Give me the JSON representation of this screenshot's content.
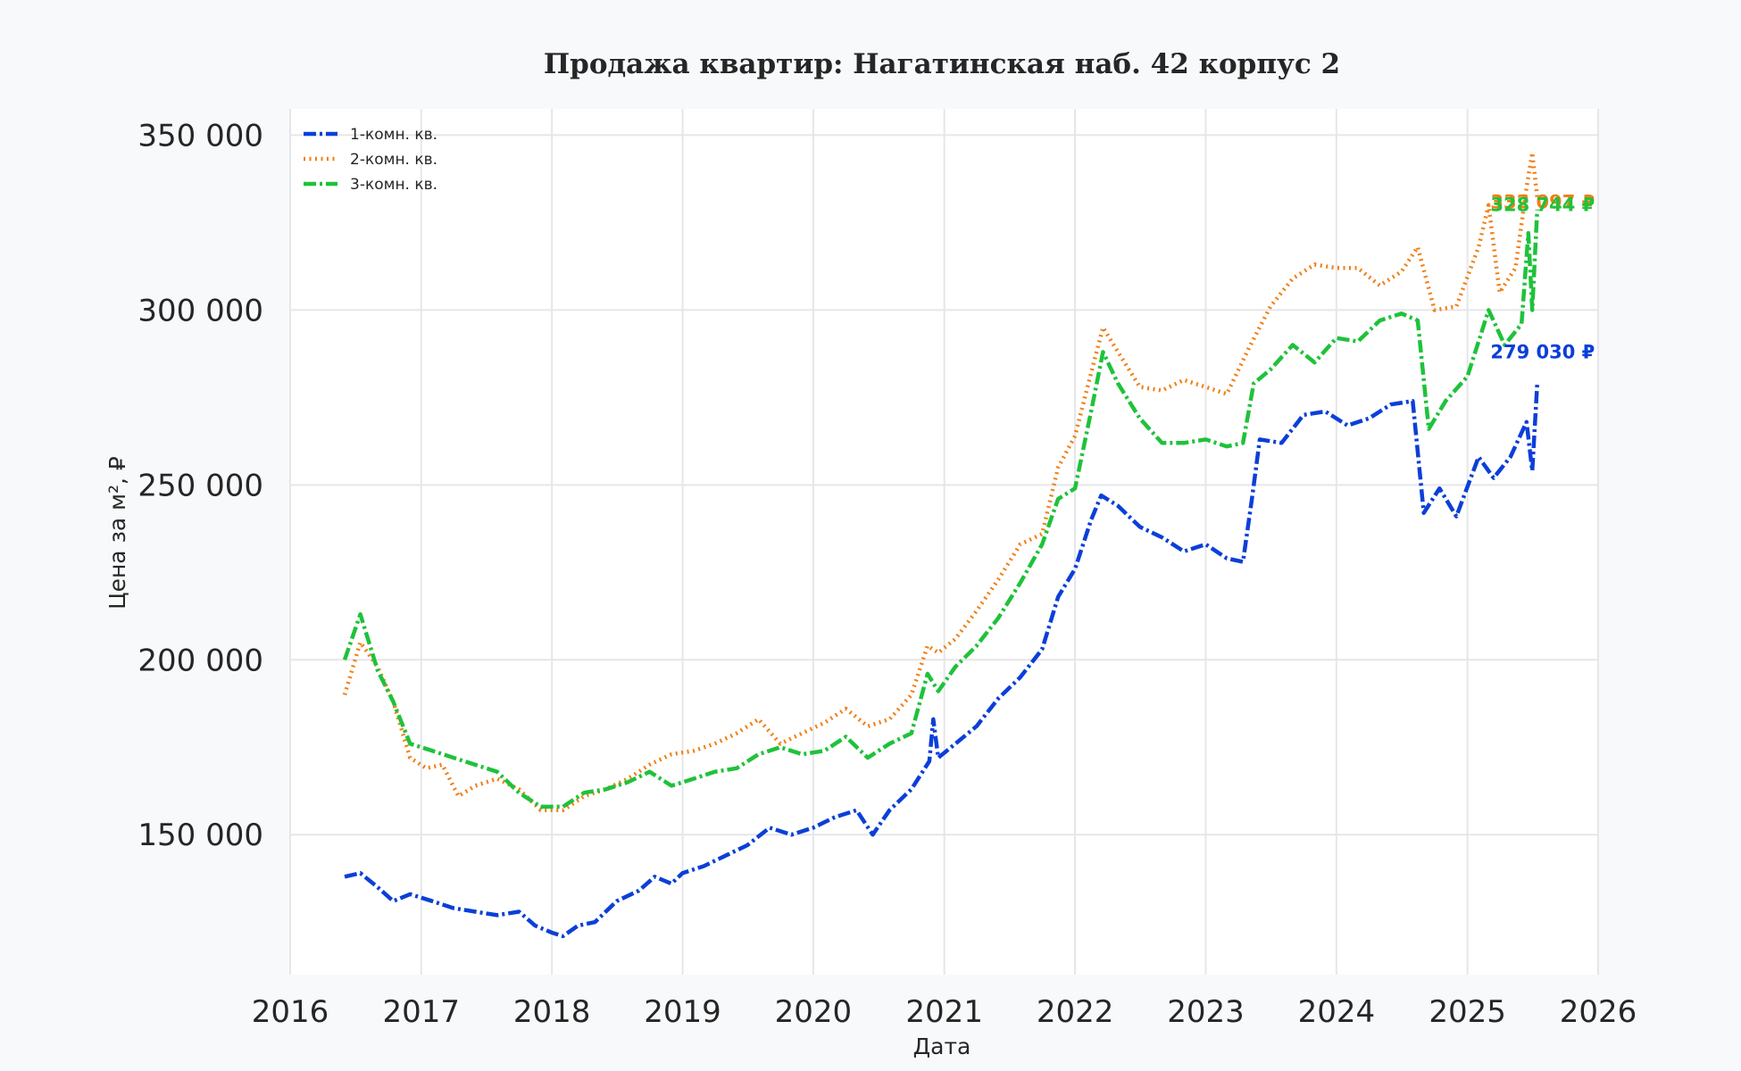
{
  "chart_data": {
    "type": "line",
    "title": "Продажа квартир: Нагатинская наб. 42 корпус 2",
    "xlabel": "Дата",
    "ylabel": "Цена за м², ₽",
    "x_ticks": [
      "2016",
      "2017",
      "2018",
      "2019",
      "2020",
      "2021",
      "2022",
      "2023",
      "2024",
      "2025",
      "2026"
    ],
    "y_ticks": [
      {
        "value": 150000,
        "label": "150 000"
      },
      {
        "value": 200000,
        "label": "200 000"
      },
      {
        "value": 250000,
        "label": "250 000"
      },
      {
        "value": 300000,
        "label": "300 000"
      },
      {
        "value": 350000,
        "label": "350 000"
      }
    ],
    "xlim": [
      "2016-01-01",
      "2026-01-01"
    ],
    "ylim": [
      110000,
      357500
    ],
    "grid": true,
    "legend_position": "top-left",
    "series": [
      {
        "name": "1-комн. кв.",
        "color": "#0b3fd8",
        "style": "dashdot",
        "end_label": "279 030 ₽",
        "points": [
          [
            "2016-06-01",
            138000
          ],
          [
            "2016-07-15",
            139000
          ],
          [
            "2016-09-01",
            135000
          ],
          [
            "2016-10-15",
            131000
          ],
          [
            "2016-12-01",
            133000
          ],
          [
            "2017-02-01",
            131000
          ],
          [
            "2017-04-01",
            129000
          ],
          [
            "2017-06-01",
            128000
          ],
          [
            "2017-08-01",
            127000
          ],
          [
            "2017-10-01",
            128000
          ],
          [
            "2017-11-15",
            124000
          ],
          [
            "2018-01-01",
            122000
          ],
          [
            "2018-02-01",
            121000
          ],
          [
            "2018-03-15",
            124000
          ],
          [
            "2018-05-01",
            125000
          ],
          [
            "2018-07-01",
            131000
          ],
          [
            "2018-09-01",
            134000
          ],
          [
            "2018-10-15",
            138000
          ],
          [
            "2018-12-01",
            136000
          ],
          [
            "2019-01-01",
            139000
          ],
          [
            "2019-03-01",
            141000
          ],
          [
            "2019-05-01",
            144000
          ],
          [
            "2019-07-01",
            147000
          ],
          [
            "2019-09-01",
            152000
          ],
          [
            "2019-11-01",
            150000
          ],
          [
            "2020-01-01",
            152000
          ],
          [
            "2020-03-01",
            155000
          ],
          [
            "2020-05-01",
            157000
          ],
          [
            "2020-06-15",
            150000
          ],
          [
            "2020-08-01",
            157000
          ],
          [
            "2020-10-01",
            163000
          ],
          [
            "2020-11-20",
            171000
          ],
          [
            "2020-12-01",
            183000
          ],
          [
            "2020-12-15",
            172000
          ],
          [
            "2021-02-01",
            176000
          ],
          [
            "2021-04-01",
            181000
          ],
          [
            "2021-06-01",
            189000
          ],
          [
            "2021-08-01",
            195000
          ],
          [
            "2021-10-01",
            203000
          ],
          [
            "2021-11-15",
            218000
          ],
          [
            "2022-01-01",
            226000
          ],
          [
            "2022-02-15",
            240000
          ],
          [
            "2022-03-15",
            247000
          ],
          [
            "2022-05-01",
            244000
          ],
          [
            "2022-07-01",
            238000
          ],
          [
            "2022-09-01",
            235000
          ],
          [
            "2022-11-01",
            231000
          ],
          [
            "2023-01-01",
            233000
          ],
          [
            "2023-03-01",
            229000
          ],
          [
            "2023-04-15",
            228000
          ],
          [
            "2023-05-10",
            246000
          ],
          [
            "2023-06-01",
            263000
          ],
          [
            "2023-08-01",
            262000
          ],
          [
            "2023-10-01",
            270000
          ],
          [
            "2023-12-01",
            271000
          ],
          [
            "2024-02-01",
            267000
          ],
          [
            "2024-04-01",
            269000
          ],
          [
            "2024-06-01",
            273000
          ],
          [
            "2024-08-01",
            274000
          ],
          [
            "2024-09-01",
            242000
          ],
          [
            "2024-10-15",
            249000
          ],
          [
            "2024-12-01",
            241000
          ],
          [
            "2025-02-01",
            258000
          ],
          [
            "2025-03-15",
            252000
          ],
          [
            "2025-05-01",
            258000
          ],
          [
            "2025-06-15",
            268000
          ],
          [
            "2025-07-01",
            254000
          ],
          [
            "2025-07-15",
            279030
          ]
        ]
      },
      {
        "name": "2-комн. кв.",
        "color": "#f07f14",
        "style": "dotted",
        "end_label": "332 097 ₽",
        "points": [
          [
            "2016-06-01",
            190000
          ],
          [
            "2016-07-15",
            205000
          ],
          [
            "2016-09-01",
            198000
          ],
          [
            "2016-10-15",
            188000
          ],
          [
            "2016-12-01",
            172000
          ],
          [
            "2017-01-15",
            169000
          ],
          [
            "2017-03-01",
            170000
          ],
          [
            "2017-04-15",
            161000
          ],
          [
            "2017-06-01",
            164000
          ],
          [
            "2017-08-01",
            166000
          ],
          [
            "2017-10-01",
            163000
          ],
          [
            "2017-12-01",
            157000
          ],
          [
            "2018-02-01",
            157000
          ],
          [
            "2018-04-01",
            161000
          ],
          [
            "2018-06-01",
            163000
          ],
          [
            "2018-08-01",
            166000
          ],
          [
            "2018-10-01",
            170000
          ],
          [
            "2018-12-01",
            173000
          ],
          [
            "2019-02-01",
            174000
          ],
          [
            "2019-04-01",
            176000
          ],
          [
            "2019-06-01",
            179000
          ],
          [
            "2019-08-01",
            183000
          ],
          [
            "2019-10-01",
            176000
          ],
          [
            "2019-12-01",
            179000
          ],
          [
            "2020-02-01",
            182000
          ],
          [
            "2020-04-01",
            186000
          ],
          [
            "2020-06-01",
            181000
          ],
          [
            "2020-08-01",
            183000
          ],
          [
            "2020-10-01",
            190000
          ],
          [
            "2020-11-15",
            204000
          ],
          [
            "2020-12-15",
            202000
          ],
          [
            "2021-02-01",
            206000
          ],
          [
            "2021-04-01",
            214000
          ],
          [
            "2021-06-01",
            223000
          ],
          [
            "2021-08-01",
            233000
          ],
          [
            "2021-10-01",
            236000
          ],
          [
            "2021-11-15",
            255000
          ],
          [
            "2022-01-01",
            264000
          ],
          [
            "2022-02-15",
            282000
          ],
          [
            "2022-03-20",
            295000
          ],
          [
            "2022-05-01",
            288000
          ],
          [
            "2022-07-01",
            278000
          ],
          [
            "2022-09-01",
            277000
          ],
          [
            "2022-11-01",
            280000
          ],
          [
            "2023-01-01",
            278000
          ],
          [
            "2023-03-01",
            276000
          ],
          [
            "2023-05-01",
            289000
          ],
          [
            "2023-07-01",
            301000
          ],
          [
            "2023-09-01",
            309000
          ],
          [
            "2023-11-01",
            313000
          ],
          [
            "2024-01-01",
            312000
          ],
          [
            "2024-03-01",
            312000
          ],
          [
            "2024-05-01",
            307000
          ],
          [
            "2024-07-01",
            311000
          ],
          [
            "2024-08-15",
            318000
          ],
          [
            "2024-10-01",
            300000
          ],
          [
            "2024-12-01",
            301000
          ],
          [
            "2025-02-01",
            318000
          ],
          [
            "2025-03-01",
            330000
          ],
          [
            "2025-04-01",
            305000
          ],
          [
            "2025-05-15",
            312000
          ],
          [
            "2025-06-15",
            335000
          ],
          [
            "2025-07-01",
            345000
          ],
          [
            "2025-07-15",
            332097
          ]
        ]
      },
      {
        "name": "3-комн. кв.",
        "color": "#1fc23a",
        "style": "dashdot",
        "end_label": "328 744 ₽",
        "points": [
          [
            "2016-06-01",
            200000
          ],
          [
            "2016-07-15",
            213000
          ],
          [
            "2016-09-01",
            197000
          ],
          [
            "2016-10-15",
            188000
          ],
          [
            "2016-12-01",
            176000
          ],
          [
            "2017-02-01",
            174000
          ],
          [
            "2017-04-01",
            172000
          ],
          [
            "2017-06-01",
            170000
          ],
          [
            "2017-08-01",
            168000
          ],
          [
            "2017-10-01",
            162000
          ],
          [
            "2017-12-01",
            158000
          ],
          [
            "2018-02-01",
            158000
          ],
          [
            "2018-04-01",
            162000
          ],
          [
            "2018-06-01",
            163000
          ],
          [
            "2018-08-01",
            165000
          ],
          [
            "2018-10-01",
            168000
          ],
          [
            "2018-12-01",
            164000
          ],
          [
            "2019-02-01",
            166000
          ],
          [
            "2019-04-01",
            168000
          ],
          [
            "2019-06-01",
            169000
          ],
          [
            "2019-08-01",
            173000
          ],
          [
            "2019-10-01",
            175000
          ],
          [
            "2019-12-01",
            173000
          ],
          [
            "2020-02-01",
            174000
          ],
          [
            "2020-04-01",
            178000
          ],
          [
            "2020-06-01",
            172000
          ],
          [
            "2020-08-01",
            176000
          ],
          [
            "2020-10-01",
            179000
          ],
          [
            "2020-11-15",
            196000
          ],
          [
            "2020-12-15",
            191000
          ],
          [
            "2021-02-01",
            198000
          ],
          [
            "2021-04-01",
            204000
          ],
          [
            "2021-06-01",
            212000
          ],
          [
            "2021-08-01",
            222000
          ],
          [
            "2021-10-01",
            233000
          ],
          [
            "2021-11-15",
            246000
          ],
          [
            "2022-01-01",
            249000
          ],
          [
            "2022-02-15",
            271000
          ],
          [
            "2022-03-20",
            288000
          ],
          [
            "2022-05-01",
            279000
          ],
          [
            "2022-07-01",
            269000
          ],
          [
            "2022-09-01",
            262000
          ],
          [
            "2022-11-01",
            262000
          ],
          [
            "2023-01-01",
            263000
          ],
          [
            "2023-03-01",
            261000
          ],
          [
            "2023-04-15",
            262000
          ],
          [
            "2023-05-15",
            279000
          ],
          [
            "2023-07-01",
            283000
          ],
          [
            "2023-09-01",
            290000
          ],
          [
            "2023-11-01",
            285000
          ],
          [
            "2024-01-01",
            292000
          ],
          [
            "2024-03-01",
            291000
          ],
          [
            "2024-05-01",
            297000
          ],
          [
            "2024-07-01",
            299000
          ],
          [
            "2024-08-15",
            297000
          ],
          [
            "2024-09-15",
            266000
          ],
          [
            "2024-11-01",
            274000
          ],
          [
            "2025-01-01",
            281000
          ],
          [
            "2025-03-01",
            300000
          ],
          [
            "2025-04-15",
            290000
          ],
          [
            "2025-06-01",
            296000
          ],
          [
            "2025-06-20",
            322000
          ],
          [
            "2025-07-01",
            300000
          ],
          [
            "2025-07-15",
            328744
          ]
        ]
      }
    ]
  }
}
